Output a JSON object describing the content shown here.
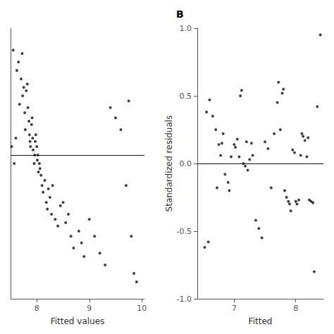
{
  "chart_data": [
    {
      "type": "scatter",
      "x": [
        7.52,
        7.55,
        7.57,
        7.6,
        7.62,
        7.65,
        7.67,
        7.7,
        7.72,
        7.73,
        7.75,
        7.77,
        7.78,
        7.8,
        7.82,
        7.83,
        7.85,
        7.86,
        7.87,
        7.88,
        7.9,
        7.91,
        7.92,
        7.93,
        7.95,
        7.96,
        7.97,
        7.98,
        8.0,
        8.01,
        8.02,
        8.03,
        8.05,
        8.06,
        8.08,
        8.1,
        8.12,
        8.15,
        8.18,
        8.2,
        8.22,
        8.25,
        8.28,
        8.3,
        8.35,
        8.4,
        8.45,
        8.5,
        8.55,
        8.6,
        8.65,
        8.7,
        8.8,
        8.85,
        8.9,
        9.0,
        9.1,
        9.2,
        9.3,
        9.4,
        9.5,
        9.6,
        9.7,
        9.75,
        9.8,
        9.85,
        9.9
      ],
      "y": [
        0.05,
        0.62,
        -0.05,
        0.1,
        0.5,
        0.55,
        0.3,
        0.45,
        0.6,
        0.35,
        0.4,
        0.25,
        0.15,
        0.38,
        0.42,
        0.28,
        0.2,
        0.12,
        0.08,
        0.05,
        0.18,
        0.22,
        0.1,
        0.03,
        -0.05,
        0.0,
        0.08,
        0.12,
        0.05,
        -0.03,
        0.0,
        -0.1,
        -0.05,
        -0.08,
        -0.12,
        -0.18,
        -0.22,
        -0.15,
        -0.28,
        -0.32,
        -0.2,
        -0.25,
        -0.35,
        -0.18,
        -0.38,
        -0.42,
        -0.3,
        -0.28,
        -0.4,
        -0.35,
        -0.48,
        -0.55,
        -0.45,
        -0.52,
        -0.6,
        -0.38,
        -0.48,
        -0.58,
        -0.65,
        0.28,
        0.22,
        0.15,
        -0.18,
        0.32,
        -0.48,
        -0.7,
        -0.75
      ],
      "xlabel": "Fitted values",
      "xlim": [
        7.5,
        10.05
      ],
      "xticks": [
        8,
        9,
        10
      ],
      "ylim": [
        -0.85,
        0.75
      ],
      "hline": 0.0,
      "tick_labels": "x",
      "grid": false,
      "color": "#111111"
    },
    {
      "type": "scatter",
      "title": "B",
      "x": [
        6.52,
        6.55,
        6.58,
        6.6,
        6.65,
        6.7,
        6.72,
        6.75,
        6.78,
        6.8,
        6.82,
        6.85,
        6.9,
        6.92,
        6.95,
        7.0,
        7.02,
        7.05,
        7.08,
        7.1,
        7.12,
        7.15,
        7.18,
        7.2,
        7.22,
        7.25,
        7.28,
        7.3,
        7.35,
        7.4,
        7.45,
        7.5,
        7.55,
        7.6,
        7.65,
        7.7,
        7.72,
        7.75,
        7.78,
        7.8,
        7.82,
        7.85,
        7.88,
        7.9,
        7.92,
        7.95,
        7.98,
        8.0,
        8.02,
        8.05,
        8.08,
        8.1,
        8.12,
        8.15,
        8.18,
        8.2,
        8.22,
        8.25,
        8.28,
        8.3,
        8.35,
        8.4
      ],
      "y": [
        -0.62,
        0.38,
        -0.58,
        0.47,
        0.35,
        0.25,
        -0.18,
        0.14,
        0.06,
        0.15,
        0.22,
        -0.08,
        -0.14,
        -0.2,
        0.05,
        0.14,
        0.12,
        0.18,
        0.05,
        0.5,
        0.54,
        0.0,
        -0.02,
        0.16,
        -0.05,
        0.03,
        0.15,
        0.06,
        -0.42,
        -0.48,
        -0.55,
        0.16,
        0.11,
        -0.18,
        0.22,
        0.45,
        0.6,
        0.25,
        0.52,
        0.55,
        -0.2,
        -0.25,
        -0.28,
        -0.3,
        -0.35,
        0.1,
        0.08,
        -0.28,
        -0.3,
        -0.27,
        0.06,
        0.22,
        0.2,
        0.17,
        0.05,
        0.19,
        -0.27,
        -0.28,
        -0.29,
        -0.8,
        0.42,
        0.95
      ],
      "xlabel": "Fitted",
      "ylabel": "Standardized residuals",
      "xlim": [
        6.4,
        8.45
      ],
      "xticks": [
        7,
        8
      ],
      "ylim": [
        -1.0,
        1.0
      ],
      "yticks": [
        {
          "value": -1.0,
          "label": "-1.0"
        },
        -0.5,
        {
          "value": 0.0,
          "label": "0.0"
        },
        0.5,
        {
          "value": 1.0,
          "label": "1.0"
        }
      ],
      "hline": 0.0,
      "grid": false,
      "color": "#111111"
    }
  ]
}
